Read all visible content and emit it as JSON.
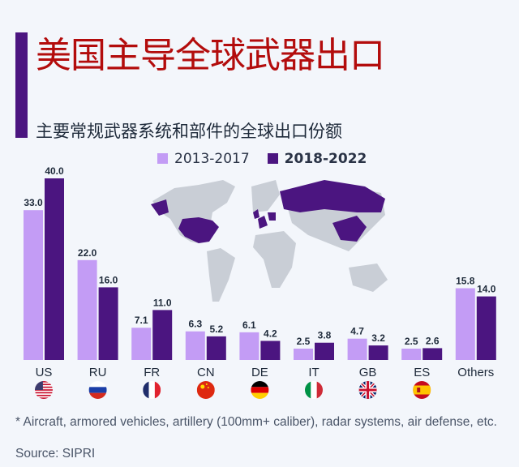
{
  "title": "美国主导全球武器出口",
  "subtitle": "主要常规武器系统和部件的全球出口份额",
  "footnote": "* Aircraft, armored vehicles, artillery (100mm+ caliber), radar systems, air defense, etc.",
  "source": "Source: SIPRI",
  "colors": {
    "light": "#c39cf5",
    "dark": "#4b1580",
    "title": "#b30c0c",
    "map_gray": "#c9ced6"
  },
  "chart_data": {
    "type": "bar",
    "categories": [
      "US",
      "RU",
      "FR",
      "CN",
      "DE",
      "IT",
      "GB",
      "ES",
      "Others"
    ],
    "flags": [
      "us-flag",
      "ru-flag",
      "fr-flag",
      "cn-flag",
      "de-flag",
      "it-flag",
      "gb-flag",
      "es-flag",
      ""
    ],
    "series": [
      {
        "name": "2013-2017",
        "values": [
          33.0,
          22.0,
          7.1,
          6.3,
          6.1,
          2.5,
          4.7,
          2.5,
          15.8
        ]
      },
      {
        "name": "2018-2022",
        "values": [
          40.0,
          16.0,
          11.0,
          5.2,
          4.2,
          3.8,
          3.2,
          2.6,
          14.0
        ]
      }
    ],
    "ylim": [
      0,
      40
    ],
    "grid": false,
    "legend": "top"
  }
}
